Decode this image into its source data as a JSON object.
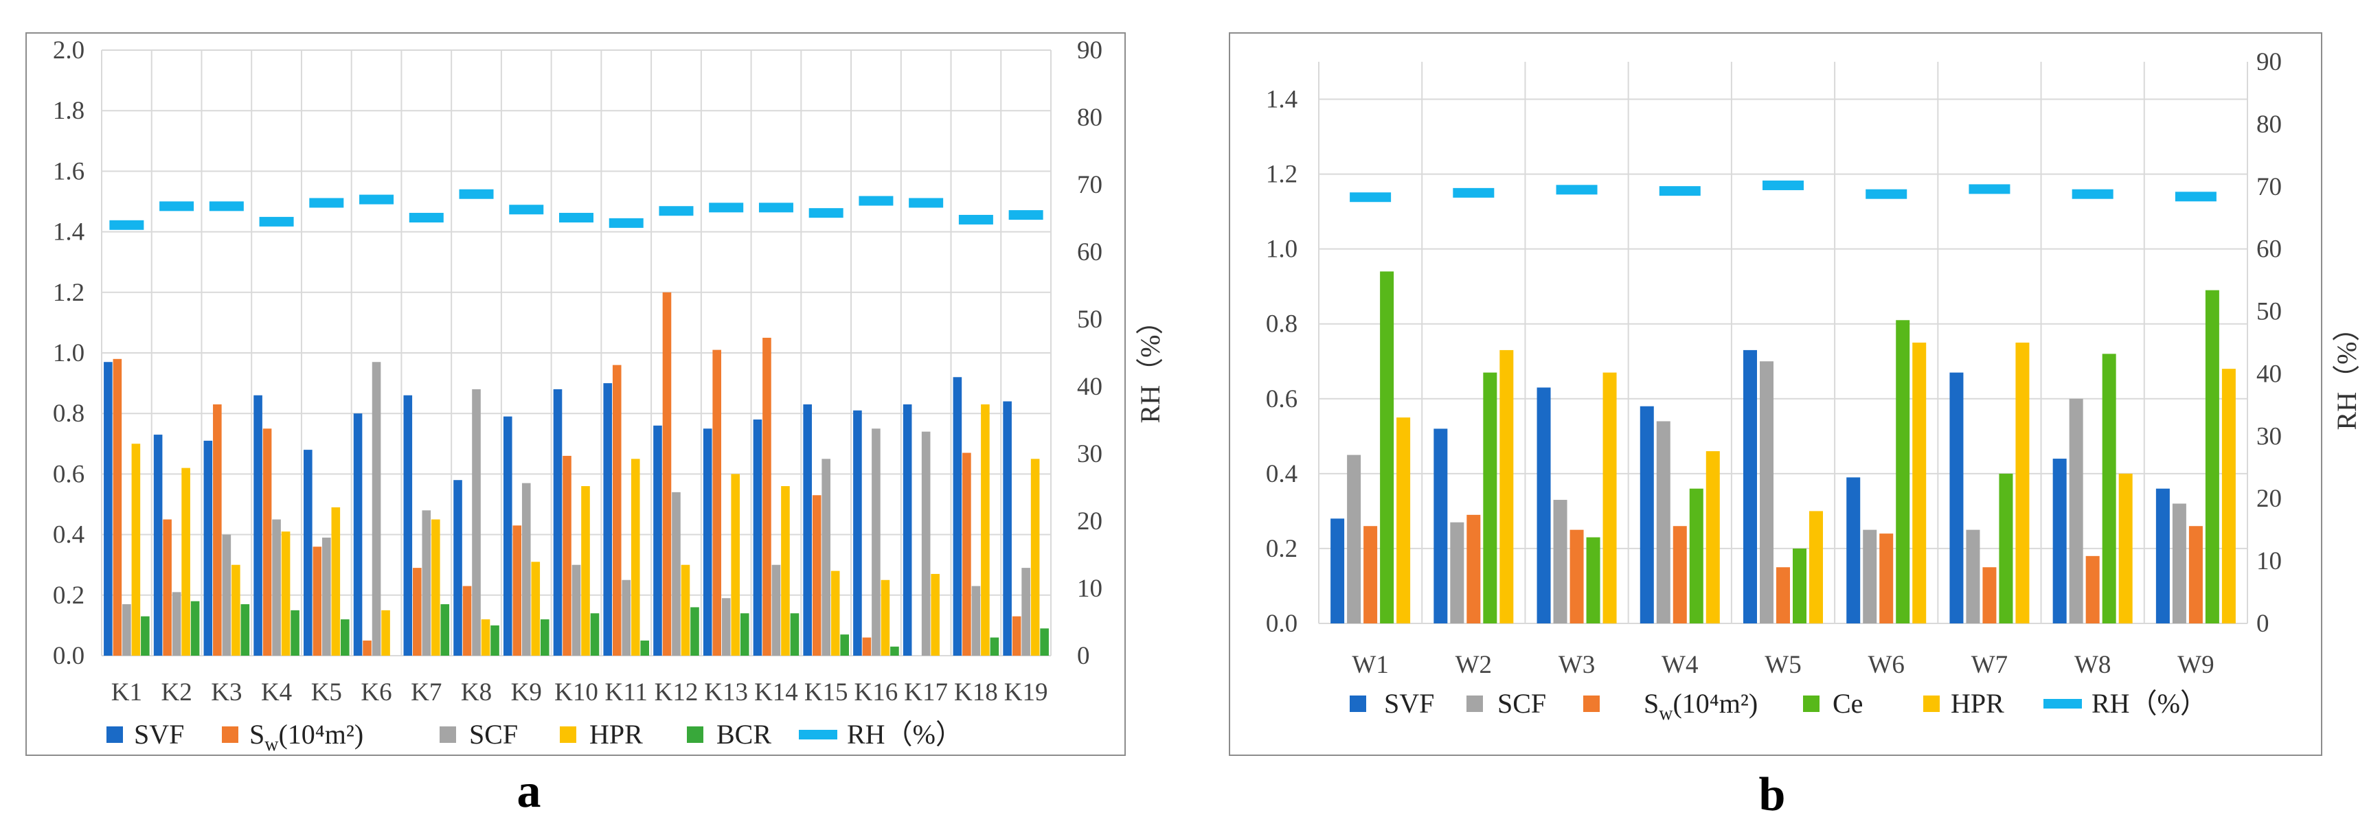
{
  "colors": {
    "SVF": "#1a6ac6",
    "SW": "#f07a2d",
    "SCF": "#a5a5a5",
    "HPR": "#fcc200",
    "BCR": "#38a83a",
    "Ce": "#58b81a",
    "RH": "#14b4ee",
    "grid": "#d9d9d9",
    "frame": "#8c8c8c"
  },
  "chart_data": [
    {
      "type": "bar",
      "panel_label": "a",
      "categories": [
        "K1",
        "K2",
        "K3",
        "K4",
        "K5",
        "K6",
        "K7",
        "K8",
        "K9",
        "K10",
        "K11",
        "K12",
        "K13",
        "K14",
        "K15",
        "K16",
        "K17",
        "K18",
        "K19"
      ],
      "ylim": [
        0,
        2.0
      ],
      "yticks": [
        "0.0",
        "0.2",
        "0.4",
        "0.6",
        "0.8",
        "1.0",
        "1.2",
        "1.4",
        "1.6",
        "1.8",
        "2.0"
      ],
      "y2lim": [
        0,
        90
      ],
      "y2ticks": [
        "0",
        "10",
        "20",
        "30",
        "40",
        "50",
        "60",
        "70",
        "80",
        "90"
      ],
      "y2label": "RH（%）",
      "series": [
        {
          "name": "SVF",
          "key": "SVF",
          "values": [
            0.97,
            0.73,
            0.71,
            0.86,
            0.68,
            0.8,
            0.86,
            0.58,
            0.79,
            0.88,
            0.9,
            0.76,
            0.75,
            0.78,
            0.83,
            0.81,
            0.83,
            0.92,
            0.84
          ]
        },
        {
          "name": "Sw(10⁴m²)",
          "key": "SW",
          "values": [
            0.98,
            0.45,
            0.83,
            0.75,
            0.36,
            0.05,
            0.29,
            0.23,
            0.43,
            0.66,
            0.96,
            1.2,
            1.01,
            1.05,
            0.53,
            0.06,
            0.0,
            0.67,
            0.13
          ]
        },
        {
          "name": "SCF",
          "key": "SCF",
          "values": [
            0.17,
            0.21,
            0.4,
            0.45,
            0.39,
            0.97,
            0.48,
            0.88,
            0.57,
            0.3,
            0.25,
            0.54,
            0.19,
            0.3,
            0.65,
            0.75,
            0.74,
            0.23,
            0.29
          ]
        },
        {
          "name": "HPR",
          "key": "HPR",
          "values": [
            0.7,
            0.62,
            0.3,
            0.41,
            0.49,
            0.15,
            0.45,
            0.12,
            0.31,
            0.56,
            0.65,
            0.3,
            0.6,
            0.56,
            0.28,
            0.25,
            0.27,
            0.83,
            0.65
          ]
        },
        {
          "name": "BCR",
          "key": "BCR",
          "values": [
            0.13,
            0.18,
            0.17,
            0.15,
            0.12,
            0.0,
            0.17,
            0.1,
            0.12,
            0.14,
            0.05,
            0.16,
            0.14,
            0.14,
            0.07,
            0.03,
            0.0,
            0.06,
            0.09
          ]
        }
      ],
      "rh": {
        "name": "RH（%）",
        "values": [
          64,
          66.8,
          66.8,
          64.5,
          67.3,
          67.8,
          65.1,
          68.6,
          66.3,
          65.1,
          64.3,
          66.1,
          66.6,
          66.6,
          65.8,
          67.6,
          67.3,
          64.8,
          65.5
        ]
      },
      "legend": {
        "svf": "SVF",
        "sw_base": "S",
        "sw_sub": "w",
        "sw_unit": "(10⁴m²)",
        "scf": "SCF",
        "hpr": "HPR",
        "bcr": "BCR",
        "rh": "RH（%）"
      }
    },
    {
      "type": "bar",
      "panel_label": "b",
      "categories": [
        "W1",
        "W2",
        "W3",
        "W4",
        "W5",
        "W6",
        "W7",
        "W8",
        "W9"
      ],
      "ylim": [
        0,
        1.5
      ],
      "yticks": [
        "0.0",
        "0.2",
        "0.4",
        "0.6",
        "0.8",
        "1.0",
        "1.2",
        "1.4"
      ],
      "y2lim": [
        0,
        90
      ],
      "y2ticks": [
        "0",
        "10",
        "20",
        "30",
        "40",
        "50",
        "60",
        "70",
        "80",
        "90"
      ],
      "y2label": "RH（%）",
      "series": [
        {
          "name": "SVF",
          "key": "SVF",
          "values": [
            0.28,
            0.52,
            0.63,
            0.58,
            0.73,
            0.39,
            0.67,
            0.44,
            0.36
          ]
        },
        {
          "name": "SCF",
          "key": "SCF",
          "values": [
            0.45,
            0.27,
            0.33,
            0.54,
            0.7,
            0.25,
            0.25,
            0.6,
            0.32
          ]
        },
        {
          "name": "Sw(10⁴m²)",
          "key": "SW",
          "values": [
            0.26,
            0.29,
            0.25,
            0.26,
            0.15,
            0.24,
            0.15,
            0.18,
            0.26
          ]
        },
        {
          "name": "Ce",
          "key": "Ce",
          "values": [
            0.94,
            0.67,
            0.23,
            0.36,
            0.2,
            0.81,
            0.4,
            0.72,
            0.89
          ]
        },
        {
          "name": "HPR",
          "key": "HPR",
          "values": [
            0.55,
            0.73,
            0.67,
            0.46,
            0.3,
            0.75,
            0.75,
            0.4,
            0.68
          ]
        }
      ],
      "rh": {
        "name": "RH（%）",
        "values": [
          68.3,
          69,
          69.5,
          69.3,
          70.2,
          68.8,
          69.6,
          68.8,
          68.4
        ]
      },
      "legend": {
        "svf": "SVF",
        "scf": "SCF",
        "sw_base": "S",
        "sw_sub": "w",
        "sw_unit": "(10⁴m²)",
        "ce": "Ce",
        "hpr": "HPR",
        "rh": "RH（%）"
      }
    }
  ]
}
